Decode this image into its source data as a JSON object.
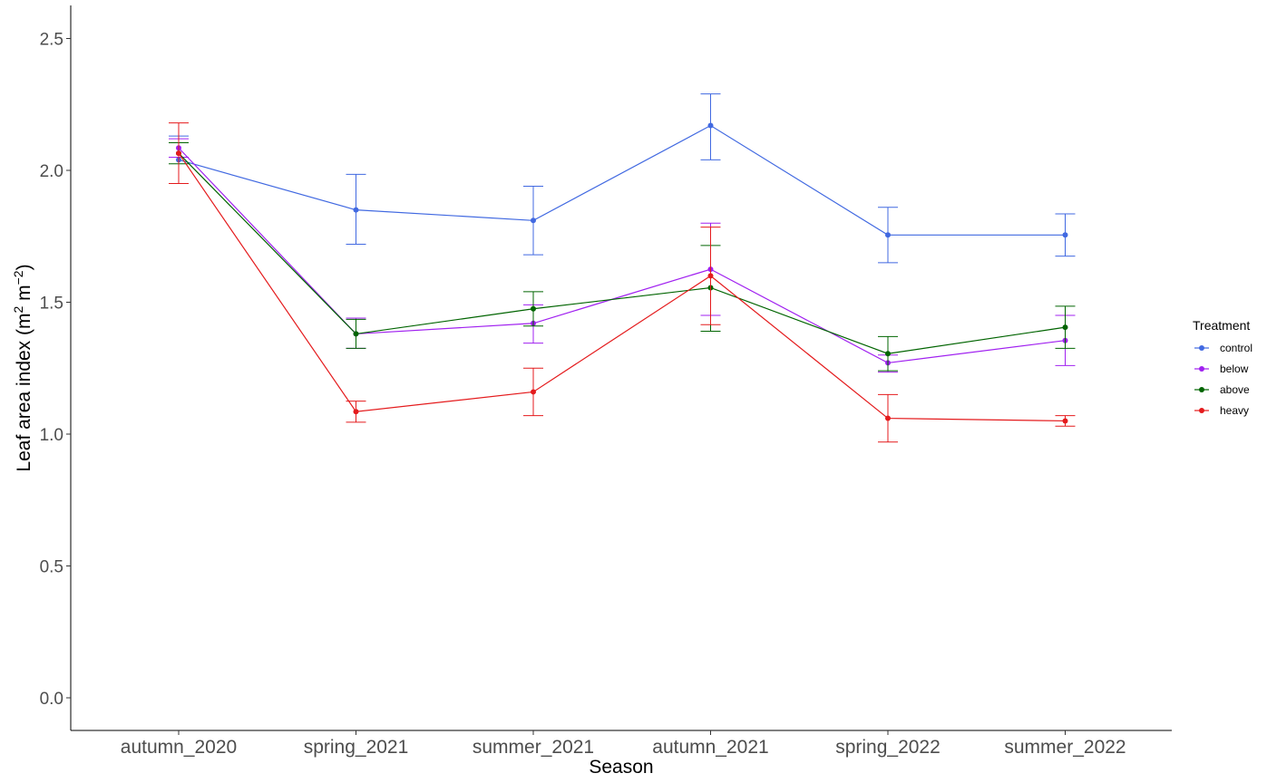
{
  "chart_data": {
    "type": "line",
    "xlabel": "Season",
    "ylabel_main": "Leaf area index (m",
    "ylabel_sup1": "2",
    "ylabel_mid": " m",
    "ylabel_sup2": "−2",
    "ylabel_end": ")",
    "categories": [
      "autumn_2020",
      "spring_2021",
      "summer_2021",
      "autumn_2021",
      "spring_2022",
      "summer_2022"
    ],
    "ylim": [
      -0.12,
      2.63
    ],
    "yticks": [
      0.0,
      0.5,
      1.0,
      1.5,
      2.0,
      2.5
    ],
    "ytick_labels": [
      "0.0",
      "0.5",
      "1.0",
      "1.5",
      "2.0",
      "2.5"
    ],
    "grid": false,
    "legend": {
      "title": "Treatment",
      "position": "right"
    },
    "series": [
      {
        "name": "control",
        "color": "#4169E1",
        "values": [
          2.04,
          1.85,
          1.81,
          2.17,
          1.755,
          1.755
        ],
        "lower": [
          1.95,
          1.72,
          1.68,
          2.04,
          1.65,
          1.675
        ],
        "upper": [
          2.13,
          1.985,
          1.94,
          2.29,
          1.86,
          1.835
        ]
      },
      {
        "name": "below",
        "color": "#A020F0",
        "values": [
          2.085,
          1.38,
          1.42,
          1.625,
          1.27,
          1.355
        ],
        "lower": [
          2.05,
          1.325,
          1.345,
          1.45,
          1.235,
          1.26
        ],
        "upper": [
          2.12,
          1.44,
          1.49,
          1.8,
          1.3,
          1.45
        ]
      },
      {
        "name": "above",
        "color": "#006400",
        "values": [
          2.065,
          1.38,
          1.475,
          1.555,
          1.305,
          1.405
        ],
        "lower": [
          2.025,
          1.325,
          1.41,
          1.39,
          1.24,
          1.325
        ],
        "upper": [
          2.105,
          1.435,
          1.54,
          1.715,
          1.37,
          1.485
        ]
      },
      {
        "name": "heavy",
        "color": "#E41A1C",
        "values": [
          2.065,
          1.085,
          1.16,
          1.6,
          1.06,
          1.05
        ],
        "lower": [
          1.95,
          1.045,
          1.07,
          1.415,
          0.97,
          1.03
        ],
        "upper": [
          2.18,
          1.125,
          1.25,
          1.785,
          1.15,
          1.07
        ]
      }
    ]
  }
}
